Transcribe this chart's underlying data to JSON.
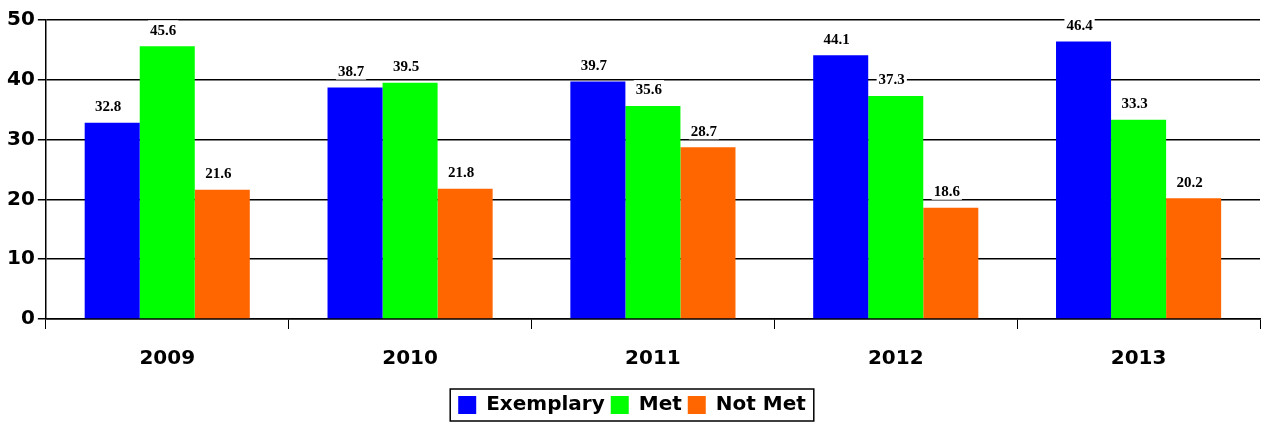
{
  "chart_data": {
    "type": "bar",
    "categories": [
      "2009",
      "2010",
      "2011",
      "2012",
      "2013"
    ],
    "series": [
      {
        "name": "Exemplary",
        "color": "#0000ff",
        "values": [
          32.8,
          38.7,
          39.7,
          44.1,
          46.4
        ]
      },
      {
        "name": "Met",
        "color": "#00ff00",
        "values": [
          45.6,
          39.5,
          35.6,
          37.3,
          33.3
        ]
      },
      {
        "name": "Not Met",
        "color": "#ff6600",
        "values": [
          21.6,
          21.8,
          28.7,
          18.6,
          20.2
        ]
      }
    ],
    "ylim": [
      0,
      50
    ],
    "yticks": [
      0,
      10,
      20,
      30,
      40,
      50
    ],
    "grid": "y",
    "legend": "bottom",
    "data_labels": true
  }
}
